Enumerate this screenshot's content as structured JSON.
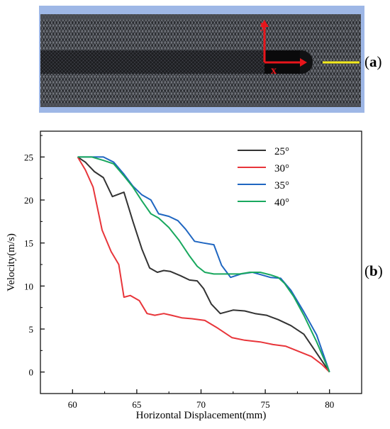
{
  "panel_a": {
    "label_open": "(",
    "label_letter": "a",
    "label_close": ")",
    "axis_y_label": "y",
    "axis_x_label": "x",
    "colors": {
      "frame": "#9eb7e6",
      "mesh": "#2c2e33",
      "axis": "#e8151b",
      "probe_line": "#f2ea1c"
    }
  },
  "panel_b": {
    "label_open": "(",
    "label_letter": "b",
    "label_close": ")"
  },
  "chart_data": {
    "type": "line",
    "title": "",
    "xlabel": "Horizontal Displacement(mm)",
    "ylabel": "Velocity(m/s)",
    "xlim": [
      57.5,
      82.5
    ],
    "ylim": [
      -2.5,
      28
    ],
    "xticks": [
      60,
      65,
      70,
      75,
      80
    ],
    "yticks": [
      0,
      5,
      10,
      15,
      20,
      25
    ],
    "grid": false,
    "legend_position": "top-right",
    "series": [
      {
        "name": "25°",
        "color": "#333333",
        "x": [
          60.4,
          61.0,
          61.7,
          62.4,
          63.1,
          64.0,
          64.7,
          65.4,
          66.0,
          66.6,
          67.1,
          67.6,
          68.4,
          69.1,
          69.7,
          70.2,
          70.8,
          71.5,
          72.5,
          73.4,
          74.2,
          75.1,
          76.0,
          77.0,
          78.0,
          80.0
        ],
        "y": [
          25.0,
          24.4,
          23.3,
          22.6,
          20.4,
          20.9,
          17.5,
          14.3,
          12.1,
          11.6,
          11.8,
          11.7,
          11.2,
          10.7,
          10.6,
          9.7,
          7.9,
          6.8,
          7.2,
          7.1,
          6.8,
          6.6,
          6.1,
          5.4,
          4.4,
          0.0
        ]
      },
      {
        "name": "30°",
        "color": "#e8353a",
        "x": [
          60.4,
          61.0,
          61.6,
          62.3,
          63.0,
          63.6,
          64.0,
          64.5,
          65.2,
          65.8,
          66.4,
          67.1,
          67.7,
          68.5,
          69.3,
          70.3,
          71.2,
          72.4,
          73.4,
          74.6,
          75.6,
          76.6,
          77.6,
          78.6,
          79.4,
          80.0
        ],
        "y": [
          25.0,
          23.5,
          21.5,
          16.5,
          14.0,
          12.5,
          8.7,
          8.9,
          8.3,
          6.8,
          6.6,
          6.8,
          6.6,
          6.3,
          6.2,
          6.0,
          5.2,
          4.0,
          3.7,
          3.5,
          3.2,
          3.0,
          2.4,
          1.8,
          0.9,
          0.0
        ]
      },
      {
        "name": "35°",
        "color": "#1f66c1",
        "x": [
          60.4,
          61.5,
          62.4,
          63.2,
          64.0,
          64.7,
          65.4,
          66.1,
          66.7,
          67.5,
          68.2,
          68.8,
          69.5,
          70.2,
          71.0,
          71.6,
          72.3,
          73.1,
          74.0,
          74.7,
          75.4,
          76.2,
          77.0,
          78.0,
          79.0,
          80.0
        ],
        "y": [
          25.0,
          25.0,
          25.0,
          24.4,
          23.0,
          21.6,
          20.6,
          20.0,
          18.4,
          18.1,
          17.6,
          16.6,
          15.2,
          15.0,
          14.8,
          12.4,
          11.0,
          11.4,
          11.6,
          11.3,
          11.0,
          10.9,
          9.5,
          7.0,
          4.3,
          0.0
        ]
      },
      {
        "name": "40°",
        "color": "#19a85e",
        "x": [
          60.4,
          61.5,
          62.4,
          63.2,
          64.0,
          64.7,
          65.4,
          66.1,
          66.7,
          67.5,
          68.3,
          69.1,
          69.7,
          70.3,
          71.0,
          72.0,
          73.0,
          73.8,
          74.6,
          75.4,
          76.0,
          76.5,
          77.2,
          78.0,
          79.0,
          80.0
        ],
        "y": [
          25.0,
          25.0,
          24.6,
          24.2,
          22.8,
          21.5,
          19.9,
          18.4,
          17.9,
          16.8,
          15.3,
          13.5,
          12.3,
          11.6,
          11.4,
          11.4,
          11.4,
          11.6,
          11.6,
          11.3,
          11.0,
          10.3,
          8.8,
          6.6,
          3.5,
          0.0
        ]
      }
    ]
  }
}
